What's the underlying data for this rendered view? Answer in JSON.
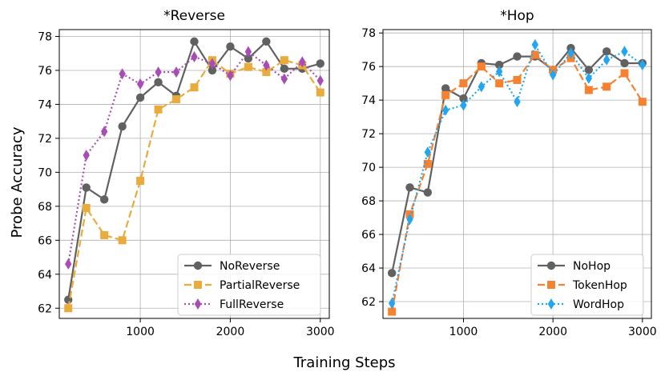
{
  "figure": {
    "xlabel": "Training Steps",
    "ylabel": "Probe Accuracy"
  },
  "chart_data": [
    {
      "type": "line",
      "title": "*Reverse",
      "xlabel": "Training Steps",
      "ylabel": "Probe Accuracy",
      "xlim": [
        100,
        3100
      ],
      "ylim": [
        61.4,
        78.4
      ],
      "xticks": [
        1000,
        2000,
        3000
      ],
      "yticks": [
        62,
        64,
        66,
        68,
        70,
        72,
        74,
        76,
        78
      ],
      "grid": true,
      "legend_position": "lower-right",
      "x": [
        200,
        400,
        600,
        800,
        1000,
        1200,
        1400,
        1600,
        1800,
        2000,
        2200,
        2400,
        2600,
        2800,
        3000
      ],
      "series": [
        {
          "name": "NoReverse",
          "color": "#616161",
          "style": "solid",
          "marker": "circle",
          "values": [
            62.5,
            69.1,
            68.4,
            72.7,
            74.4,
            75.3,
            74.5,
            77.7,
            76.0,
            77.4,
            76.7,
            77.7,
            76.1,
            76.1,
            76.4
          ]
        },
        {
          "name": "PartialReverse",
          "color": "#e8ab3c",
          "style": "dashed",
          "marker": "square",
          "values": [
            62.0,
            67.9,
            66.3,
            66.0,
            69.5,
            73.7,
            74.3,
            75.0,
            76.6,
            75.8,
            76.2,
            75.9,
            76.6,
            76.3,
            74.7
          ]
        },
        {
          "name": "FullReverse",
          "color": "#a94db6",
          "style": "dotted",
          "marker": "diamond",
          "values": [
            64.6,
            71.0,
            72.4,
            75.8,
            75.2,
            75.9,
            75.9,
            76.8,
            76.4,
            75.7,
            77.1,
            76.3,
            75.5,
            76.5,
            75.4
          ]
        }
      ]
    },
    {
      "type": "line",
      "title": "*Hop",
      "xlabel": "Training Steps",
      "ylabel": "",
      "xlim": [
        100,
        3100
      ],
      "ylim": [
        61.0,
        78.2
      ],
      "xticks": [
        1000,
        2000,
        3000
      ],
      "yticks": [
        62,
        64,
        66,
        68,
        70,
        72,
        74,
        76,
        78
      ],
      "grid": true,
      "legend_position": "lower-right",
      "x": [
        200,
        400,
        600,
        800,
        1000,
        1200,
        1400,
        1600,
        1800,
        2000,
        2200,
        2400,
        2600,
        2800,
        3000
      ],
      "series": [
        {
          "name": "NoHop",
          "color": "#616161",
          "style": "solid",
          "marker": "circle",
          "values": [
            63.7,
            68.8,
            68.5,
            74.7,
            74.1,
            76.2,
            76.1,
            76.6,
            76.6,
            75.8,
            77.1,
            75.8,
            76.9,
            76.2,
            76.2
          ]
        },
        {
          "name": "TokenHop",
          "color": "#f58131",
          "style": "dashed",
          "marker": "square",
          "values": [
            61.4,
            67.2,
            70.2,
            74.3,
            75.0,
            76.0,
            75.0,
            75.2,
            76.7,
            75.8,
            76.5,
            74.6,
            74.8,
            75.6,
            73.9
          ]
        },
        {
          "name": "WordHop",
          "color": "#23a6ef",
          "style": "dotted",
          "marker": "diamond",
          "values": [
            61.9,
            66.9,
            70.9,
            73.4,
            73.7,
            74.8,
            75.7,
            73.9,
            77.3,
            75.5,
            76.8,
            75.3,
            76.4,
            76.9,
            76.1
          ]
        }
      ]
    }
  ]
}
